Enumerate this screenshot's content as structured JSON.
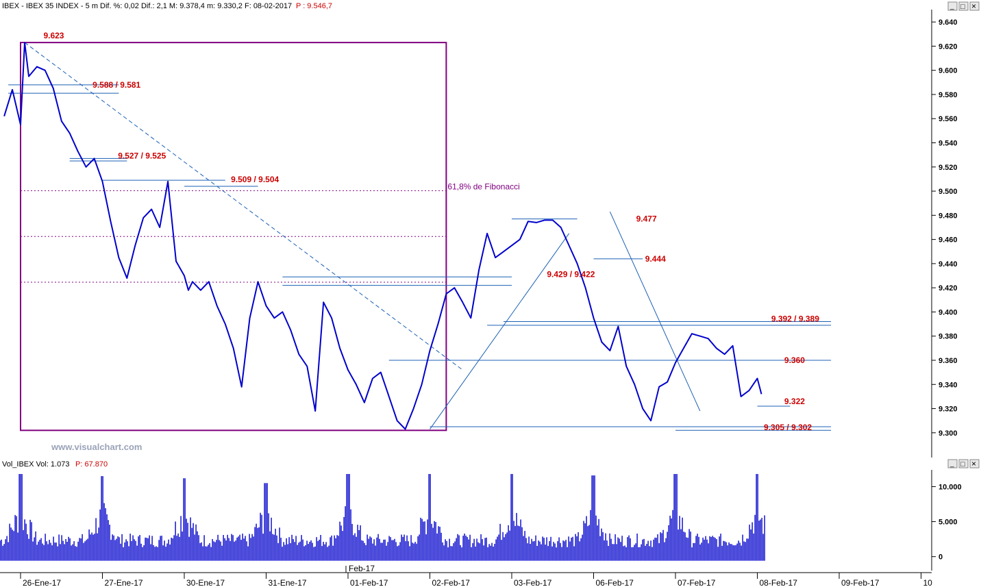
{
  "header": {
    "title": "IBEX - IBEX 35 INDEX -  5 m  Dif. %: 0,02  Dif.: 2,1  M: 9.378,4  m: 9.330,2  F: 08-02-2017",
    "price": "P : 9.546,7"
  },
  "volume_header": {
    "title": "Vol_IBEX Vol: 1.073",
    "price": "P: 67.870"
  },
  "watermark": "www.visualchart.com",
  "window_buttons": {
    "minimize": "_",
    "restore": "□",
    "close": "×"
  },
  "colors": {
    "price_line": "#0000cc",
    "support_lines": "#1a5fb4",
    "annotation_red": "#cc0000",
    "fib_purple": "#800080",
    "volume_bars": "#0000cc",
    "frame": "#000000"
  },
  "chart_data": [
    {
      "type": "line",
      "name": "price",
      "xlabel": "",
      "ylabel": "",
      "ylim": [
        9288,
        9648
      ],
      "yticks": [
        9300,
        9320,
        9340,
        9360,
        9380,
        9400,
        9420,
        9440,
        9460,
        9480,
        9500,
        9520,
        9540,
        9560,
        9580,
        9600,
        9620,
        9640
      ],
      "ytick_labels": [
        "9.300",
        "9.320",
        "9.340",
        "9.360",
        "9.380",
        "9.400",
        "9.420",
        "9.440",
        "9.460",
        "9.480",
        "9.500",
        "9.520",
        "9.540",
        "9.560",
        "9.580",
        "9.600",
        "9.620",
        "9.640"
      ],
      "xlim": [
        0,
        11.3
      ],
      "xticks": [
        0,
        1,
        2,
        3,
        4,
        5,
        6,
        7,
        8,
        9,
        10,
        11
      ],
      "xtick_labels": [
        "26-Ene-17",
        "27-Ene-17",
        "30-Ene-17",
        "31-Ene-17",
        "01-Feb-17",
        "02-Feb-17",
        "03-Feb-17",
        "06-Feb-17",
        "07-Feb-17",
        "08-Feb-17",
        "09-Feb-17",
        "10"
      ],
      "month_label": "Feb-17",
      "series": [
        {
          "x": [
            -0.2,
            -0.1,
            0.0,
            0.05,
            0.1,
            0.2,
            0.3,
            0.4,
            0.5,
            0.6,
            0.7,
            0.8,
            0.9,
            1.0,
            1.1,
            1.2,
            1.3,
            1.4,
            1.5,
            1.6,
            1.7,
            1.8,
            1.9,
            2.0,
            2.05,
            2.1,
            2.2,
            2.3,
            2.4,
            2.5,
            2.6,
            2.7,
            2.8,
            2.9,
            3.0,
            3.1,
            3.2,
            3.3,
            3.4,
            3.5,
            3.6,
            3.7,
            3.8,
            3.9,
            4.0,
            4.1,
            4.2,
            4.3,
            4.4,
            4.5,
            4.6,
            4.7,
            4.8,
            4.9,
            5.0,
            5.1,
            5.2,
            5.3,
            5.4,
            5.5,
            5.6,
            5.7,
            5.8,
            5.9,
            6.0,
            6.1,
            6.2,
            6.3,
            6.4,
            6.5,
            6.6,
            6.7,
            6.8,
            6.9,
            7.0,
            7.1,
            7.2,
            7.3,
            7.4,
            7.5,
            7.6,
            7.7,
            7.8,
            7.9,
            8.0,
            8.1,
            8.2,
            8.3,
            8.4,
            8.5,
            8.6,
            8.7,
            8.8,
            8.9,
            9.0,
            9.05
          ],
          "y": [
            9562,
            9584,
            9555,
            9623,
            9595,
            9603,
            9600,
            9585,
            9558,
            9548,
            9533,
            9520,
            9527,
            9508,
            9475,
            9445,
            9428,
            9455,
            9478,
            9485,
            9470,
            9508,
            9442,
            9430,
            9418,
            9425,
            9418,
            9425,
            9405,
            9390,
            9370,
            9338,
            9395,
            9425,
            9405,
            9395,
            9400,
            9385,
            9365,
            9355,
            9318,
            9408,
            9395,
            9370,
            9352,
            9340,
            9325,
            9345,
            9350,
            9330,
            9310,
            9303,
            9320,
            9340,
            9368,
            9390,
            9415,
            9420,
            9408,
            9395,
            9435,
            9465,
            9445,
            9450,
            9455,
            9460,
            9475,
            9474,
            9476,
            9476,
            9470,
            9455,
            9440,
            9420,
            9395,
            9375,
            9368,
            9388,
            9355,
            9340,
            9320,
            9310,
            9338,
            9342,
            9358,
            9370,
            9382,
            9380,
            9378,
            9370,
            9365,
            9372,
            9330,
            9335,
            9345,
            9332
          ]
        }
      ]
    },
    {
      "type": "bar",
      "name": "volume",
      "ylim": [
        -1500,
        12000
      ],
      "yticks": [
        0,
        5000,
        10000
      ],
      "ytick_labels": [
        "0",
        "5.000",
        "10.000"
      ],
      "baseline": 2200,
      "session_open_spikes": [
        {
          "x": 0.0,
          "value": 11800
        },
        {
          "x": 1.0,
          "value": 11500
        },
        {
          "x": 2.0,
          "value": 11200
        },
        {
          "x": 3.0,
          "value": 10500
        },
        {
          "x": 4.0,
          "value": 11800
        },
        {
          "x": 5.0,
          "value": 11800
        },
        {
          "x": 6.0,
          "value": 11800
        },
        {
          "x": 7.0,
          "value": 11600
        },
        {
          "x": 8.0,
          "value": 11800
        },
        {
          "x": 9.0,
          "value": 11800
        }
      ]
    }
  ],
  "annotations": {
    "high_label": "9.623",
    "fib_label": "61,8% de Fibonacci",
    "labels": [
      {
        "text": "9.588 / 9.581",
        "value": 9588
      },
      {
        "text": "9.527 / 9.525",
        "value": 9527
      },
      {
        "text": "9.509 / 9.504",
        "value": 9509
      },
      {
        "text": "9.477",
        "value": 9477
      },
      {
        "text": "9.444",
        "value": 9444
      },
      {
        "text": "9.429 / 9.422",
        "value": 9429
      },
      {
        "text": "9.392 / 9.389",
        "value": 9392
      },
      {
        "text": "9.360",
        "value": 9360
      },
      {
        "text": "9.322",
        "value": 9322
      },
      {
        "text": "9.305 / 9.302",
        "value": 9305
      }
    ]
  }
}
